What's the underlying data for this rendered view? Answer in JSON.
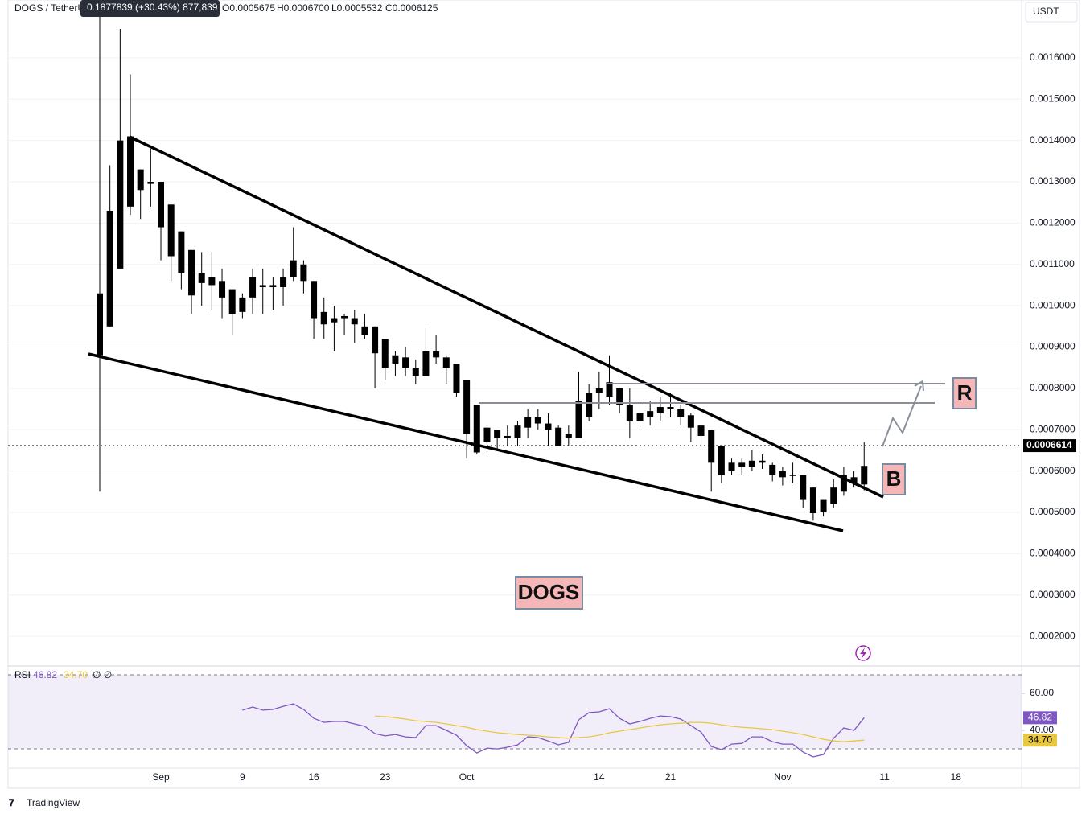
{
  "chart_data": [
    {
      "type": "candlestick",
      "title": "DOGS / TetherU",
      "tooltip": "0.1877839 (+30.43%) 877,839",
      "ohlc_text": [
        "O0.0005675",
        "H0.0006700",
        "L0.0005532",
        "C0.0006125"
      ],
      "currency": "USDT",
      "color": "#000000",
      "grid": true,
      "last_price": 0.0006614,
      "annotations": [
        "R",
        "B",
        "DOGS"
      ],
      "categories": [
        null,
        null,
        null,
        null,
        null,
        null,
        "Sep",
        null,
        null,
        null,
        null,
        null,
        null,
        null,
        "9",
        null,
        null,
        null,
        null,
        null,
        null,
        "16",
        null,
        null,
        null,
        null,
        null,
        null,
        "23",
        null,
        null,
        null,
        null,
        null,
        null,
        null,
        "Oct",
        null,
        null,
        null,
        null,
        null,
        null,
        null,
        null,
        null,
        null,
        null,
        null,
        "14",
        null,
        null,
        null,
        null,
        null,
        null,
        "21",
        null,
        null,
        null,
        null,
        null,
        null,
        null,
        null,
        null,
        null,
        "Nov",
        null,
        null,
        null,
        null,
        null,
        null,
        null,
        null,
        null,
        "11",
        null,
        null,
        null,
        null,
        null,
        null,
        "18",
        null,
        null,
        null,
        null,
        null,
        null
      ],
      "open": [
        0.00088,
        0.00095,
        0.00109,
        0.00124,
        0.00133,
        0.0013,
        0.0013,
        0.001245,
        0.00118,
        0.001135,
        0.00108,
        0.00107,
        0.00106,
        0.00104,
        0.000985,
        0.00102,
        0.00105,
        0.001045,
        0.001045,
        0.00107,
        0.0011,
        0.00106,
        0.000985,
        0.00097,
        0.000975,
        0.00097,
        0.00095,
        0.00095,
        0.00092,
        0.00088,
        0.000875,
        0.00085,
        0.00083,
        0.00089,
        0.000875,
        0.00086,
        0.00082,
        0.00076,
        0.00067,
        0.0007,
        0.00068,
        0.00068,
        0.000705,
        0.00073,
        0.000715,
        0.000705,
        0.00068,
        0.00068,
        0.00073,
        0.00079,
        0.00078,
        0.0008,
        0.00076,
        0.00072,
        0.00073,
        0.00074,
        0.000755,
        0.00075,
        0.000735,
        0.00071,
        0.0007,
        0.00066,
        0.0006,
        0.00061,
        0.00061,
        0.000625,
        0.000615,
        0.0006,
        0.00059,
        0.00059,
        0.00056,
        0.0005,
        0.00052,
        0.00055,
        0.00057,
        0.0005675,
        null,
        null,
        null,
        null,
        null,
        null,
        null,
        null,
        null,
        null,
        null,
        null,
        null,
        null,
        null
      ],
      "high": [
        0.00175,
        0.00134,
        0.00167,
        0.00156,
        0.00133,
        0.00138,
        0.0013,
        0.001245,
        0.00118,
        0.001135,
        0.00113,
        0.00113,
        0.00109,
        0.00104,
        0.00103,
        0.00109,
        0.00109,
        0.00107,
        0.00109,
        0.00119,
        0.00111,
        0.00106,
        0.00102,
        0.001,
        0.00098,
        0.00099,
        0.00098,
        0.00095,
        0.00092,
        0.00089,
        0.0009,
        0.00087,
        0.00095,
        0.00093,
        0.00088,
        0.00086,
        0.00082,
        0.00076,
        0.00071,
        0.0007,
        0.00071,
        0.00072,
        0.00075,
        0.00075,
        0.00074,
        0.00071,
        0.00071,
        0.00084,
        0.00081,
        0.00084,
        0.00088,
        0.0008,
        0.0008,
        0.00076,
        0.00077,
        0.00078,
        0.00079,
        0.00076,
        0.00074,
        0.00071,
        0.0007,
        0.00066,
        0.00063,
        0.00063,
        0.00065,
        0.00064,
        0.00062,
        0.00061,
        0.00062,
        0.00059,
        0.00056,
        0.00053,
        0.00058,
        0.00061,
        0.0006,
        0.00067,
        null,
        null,
        null,
        null,
        null,
        null,
        null,
        null,
        null,
        null,
        null,
        null,
        null,
        null,
        null
      ],
      "low": [
        0.00055,
        0.00095,
        0.00109,
        0.00122,
        0.00121,
        0.00124,
        0.00111,
        0.00106,
        0.00104,
        0.00098,
        0.001,
        0.00099,
        0.00097,
        0.00093,
        0.00097,
        0.00098,
        0.00098,
        0.00099,
        0.001,
        0.00106,
        0.00103,
        0.00092,
        0.00092,
        0.00089,
        0.00093,
        0.00091,
        0.00092,
        0.0008,
        0.00082,
        0.00083,
        0.00083,
        0.00081,
        0.00083,
        0.00086,
        0.00081,
        0.00078,
        0.00063,
        0.00064,
        0.00064,
        0.00065,
        0.00066,
        0.00066,
        0.00068,
        0.0007,
        0.00066,
        0.00066,
        0.00066,
        0.00068,
        0.00072,
        0.00075,
        0.00076,
        0.00074,
        0.00068,
        0.0007,
        0.00071,
        0.00072,
        0.00073,
        0.00071,
        0.00067,
        0.00065,
        0.00055,
        0.00057,
        0.00059,
        0.00059,
        0.0006,
        0.000605,
        0.000575,
        0.000565,
        0.00057,
        0.00051,
        0.00048,
        0.00049,
        0.00051,
        0.00054,
        0.00056,
        0.0005532,
        null,
        null,
        null,
        null,
        null,
        null,
        null,
        null,
        null,
        null,
        null,
        null,
        null,
        null,
        null
      ],
      "close": [
        0.00103,
        0.00123,
        0.0014,
        0.00141,
        0.00128,
        0.001295,
        0.00119,
        0.00112,
        0.00108,
        0.001025,
        0.001055,
        0.00105,
        0.00102,
        0.00098,
        0.00102,
        0.00107,
        0.001045,
        0.00105,
        0.00107,
        0.00111,
        0.00106,
        0.00097,
        0.000955,
        0.00096,
        0.00097,
        0.000955,
        0.00093,
        0.000885,
        0.00085,
        0.00086,
        0.00085,
        0.00083,
        0.00089,
        0.000875,
        0.00085,
        0.00079,
        0.00069,
        0.000645,
        0.000705,
        0.00068,
        0.000685,
        0.00071,
        0.00073,
        0.000715,
        0.0007,
        0.00066,
        0.00069,
        0.00077,
        0.00079,
        0.0008,
        0.000815,
        0.00076,
        0.00072,
        0.00074,
        0.000745,
        0.000755,
        0.00075,
        0.00073,
        0.000705,
        0.000685,
        0.00062,
        0.00059,
        0.00062,
        0.00062,
        0.000625,
        0.00062,
        0.00059,
        0.000585,
        0.00059,
        0.00053,
        0.000498,
        0.00053,
        0.00056,
        0.00059,
        0.000585,
        0.0006125,
        null,
        null,
        null,
        null,
        null,
        null,
        null,
        null,
        null,
        null,
        null,
        null,
        null,
        null,
        null
      ],
      "ylim": [
        0.000134,
        0.00174
      ],
      "yticks": [
        {
          "value": 0.0002,
          "label": "0.0002000"
        },
        {
          "value": 0.0003,
          "label": "0.0003000"
        },
        {
          "value": 0.0004,
          "label": "0.0004000"
        },
        {
          "value": 0.0005,
          "label": "0.0005000"
        },
        {
          "value": 0.0006,
          "label": "0.0006000"
        },
        {
          "value": 0.0007,
          "label": "0.0007000"
        },
        {
          "value": 0.0008,
          "label": "0.0008000"
        },
        {
          "value": 0.0009,
          "label": "0.0009000"
        },
        {
          "value": 0.001,
          "label": "0.0010000"
        },
        {
          "value": 0.0011,
          "label": "0.0011000"
        },
        {
          "value": 0.0012,
          "label": "0.0012000"
        },
        {
          "value": 0.0013,
          "label": "0.0013000"
        },
        {
          "value": 0.0014,
          "label": "0.0014000"
        },
        {
          "value": 0.0015,
          "label": "0.0015000"
        },
        {
          "value": 0.0016,
          "label": "0.0016000"
        }
      ]
    },
    {
      "type": "line",
      "title": "RSI",
      "legend_extra": "∅ ∅",
      "band": [
        30,
        70
      ],
      "ylim": [
        19.6,
        73.9
      ],
      "yticks": [
        {
          "value": 40,
          "label": "40.00"
        },
        {
          "value": 60,
          "label": "60.00"
        }
      ],
      "series": [
        {
          "name": "RSI",
          "color": "#7e57c2",
          "value_label": "46.82",
          "values": [
            null,
            null,
            null,
            null,
            null,
            null,
            null,
            null,
            null,
            null,
            null,
            null,
            null,
            null,
            50.9,
            52.6,
            50.9,
            51.3,
            53,
            54.3,
            51.3,
            46.5,
            44.3,
            44.8,
            44.8,
            43.5,
            42.2,
            38.3,
            37,
            37.8,
            36.5,
            36.1,
            42.6,
            42.6,
            40,
            37.4,
            31.7,
            27.8,
            30.4,
            30,
            30.9,
            32.2,
            36.5,
            36.1,
            34.3,
            32.2,
            33.5,
            45.7,
            49.6,
            50,
            51.7,
            46.5,
            43.5,
            44.8,
            46.5,
            47.8,
            47.4,
            46.1,
            42.6,
            39.1,
            31.3,
            29.6,
            32.6,
            33,
            36.5,
            36.5,
            33.9,
            32.6,
            32.6,
            28.3,
            25.7,
            27,
            35.7,
            41.3,
            40,
            46.82,
            null,
            null,
            null,
            null,
            null,
            null,
            null,
            null,
            null,
            null,
            null,
            null,
            null,
            null,
            null
          ]
        },
        {
          "color": "#e8c840",
          "value_label": "34.70",
          "values": [
            null,
            null,
            null,
            null,
            null,
            null,
            null,
            null,
            null,
            null,
            null,
            null,
            null,
            null,
            null,
            null,
            null,
            null,
            null,
            null,
            null,
            null,
            null,
            null,
            null,
            null,
            null,
            47.8,
            47.4,
            46.9,
            46.1,
            45.2,
            44.8,
            44.3,
            43.5,
            42.6,
            41.7,
            40.4,
            39.6,
            38.7,
            38.3,
            37.8,
            37.4,
            37,
            36.5,
            36.1,
            35.7,
            36.1,
            36.5,
            37.4,
            38.7,
            39.6,
            40.4,
            41.3,
            42.2,
            43,
            43.5,
            43.9,
            44.3,
            44.3,
            43.9,
            43,
            42.2,
            41.7,
            41.3,
            40.9,
            40.4,
            39.6,
            38.7,
            37.8,
            36.5,
            35.2,
            34.3,
            33.9,
            34.3,
            34.7,
            null,
            null,
            null,
            null,
            null,
            null,
            null,
            null,
            null,
            null,
            null,
            null,
            null,
            null,
            null
          ]
        }
      ]
    }
  ],
  "footer": {
    "brand": "TradingView"
  }
}
